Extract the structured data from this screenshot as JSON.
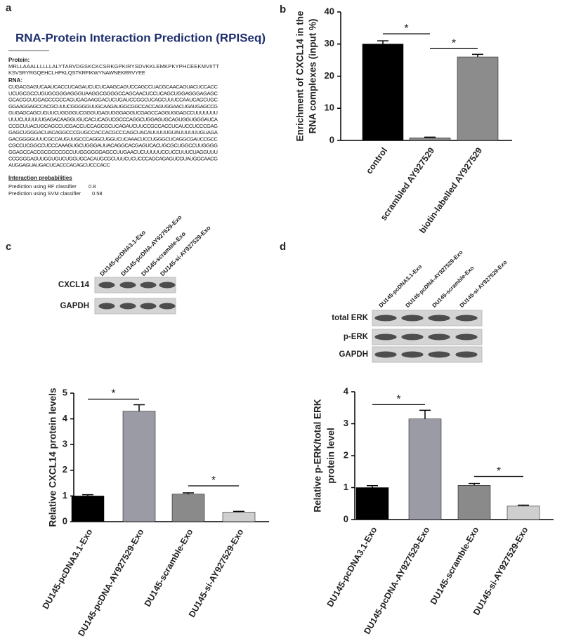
{
  "panels": [
    "a",
    "b",
    "c",
    "d"
  ],
  "rpiseq": {
    "title": "RNA-Protein Interaction Prediction (RPISeq)",
    "protein_label": "Protein:",
    "protein": [
      "MRLLAAALLLLLLALYTARVDGSKCKCSRKGPKIRYSDVKKLEMKPKYPHCEEKMVIITT",
      "KSVSRYRGQEHCLHPKLQSTKRFIKWYNAWNEKRRVYEE"
    ],
    "rna_label": "RNA:",
    "rna": [
      "CUGACGAGUCAAUCACCUCAGAUCUCUCAAGCAGUCCAGCCUACGCAACAGUACUCCACC",
      "UCUGCGCCUGUGCGGGAGGGUAAGGCGGGGCCAGCAACUCCUCAGCUGGAGGGAGAGC",
      "GCACGGUGGAGCCGCCAGUGAGAAGGACUCUGAUCCGGCUCAGCUUUCCAAUCAGCUGC",
      "GGAAGGAGCCACGCUUUCGGGGGUUGCAAGAUGGCGGCCACCAGUGGAACUGAUGAGCCG",
      "GUGAGCAGCUGUUCUGGGGUCGGGUGAGUGGGAGGUCGAGCCAGGUGGAGCCUUUUUUU",
      "UUUCUUUUUUGAGACAAGGUGUCACUCAGUCGCCCAGGCUGGAGUGCAGUGGUGGGAUCA",
      "CCGCUUACUGCAGCCUCGACCUCCAGCGCUCAGAUCUUCCGCCACCUCAUCCUCCCGAG",
      "GAGCUGGGACUACAGGCCCGUGCCACCACGCCCAGCUACAUUUUUGUAUUUUUUGUAGA",
      "GACGGGGUUUCGCCAUGUUGCCCAGGCUGGUCUCAAACUCCUGGGCUCAGGCGAUCCGCC",
      "CGCCUCGGCCUCCCAAAGUGCUGGGAUUACAGGCACGAGUCACUGCGCUGGCCUUGGGG",
      "GGAGCCACCGCGCCCGCCUUGGGGGGAGCCUUGAACUCUUUUUCCUCCUUUCUAGGUUU",
      "CCGGGGAGUUGGUGUCUGGUGCACAUGCGCUUUCUCUCCCAGCAGAGUCGUAUGGCAACG",
      "AUGGAGUAUGACUCACCCACAGCUCCCACC"
    ],
    "interaction_label": "Interaction probabilities",
    "predictions": [
      {
        "label": "Prediction using RF classifier",
        "value": "0.8"
      },
      {
        "label": "Prediction using SVM classifier",
        "value": "0.58"
      }
    ]
  },
  "blots": [
    {
      "lanes": [
        "DU145-pcDNA3.1-Exo",
        "DU145-pcDNA-AY927529-Exo",
        "DU145-scramble-Exo",
        "DU145-si-AY927529-Exo"
      ],
      "rows": [
        "CXCL14",
        "GAPDH"
      ]
    },
    {
      "lanes": [
        "DU145-pcDNA3.1-Exo",
        "DU145-pcDNA-AY927529-Exo",
        "DU145-scramble-Exo",
        "DU145-si-AY927529-Exo"
      ],
      "rows": [
        "total ERK",
        "p-ERK",
        "GAPDH"
      ]
    }
  ],
  "chart_data": [
    {
      "type": "bar",
      "ylabel": [
        "Enrichment of  CXCL14 in the",
        "RNA complexes (input %)"
      ],
      "categories": [
        "control",
        "scrambled  AY927529",
        "biotin-labelled AY927529"
      ],
      "values": [
        30,
        0.8,
        26
      ],
      "errors": [
        1,
        0.2,
        0.8
      ],
      "colors": [
        "#000000",
        "#8c8c8c",
        "#8c8c8c"
      ],
      "ylim": [
        0,
        40
      ],
      "yticks": [
        0,
        10,
        20,
        30,
        40
      ],
      "significance": [
        {
          "label": "*",
          "between": [
            "control",
            "scrambled  AY927529"
          ]
        },
        {
          "label": "*",
          "between": [
            "scrambled  AY927529",
            "biotin-labelled AY927529"
          ]
        }
      ]
    },
    {
      "type": "bar",
      "ylabel": [
        "Relative  CXCL14 protein  levels"
      ],
      "categories": [
        "DU145-pcDNA3.1-Exo",
        "DU145-pcDNA-AY927529-Exo",
        "DU145-scramble-Exo",
        "DU145-si-AY927529-Exo"
      ],
      "values": [
        1.0,
        4.3,
        1.07,
        0.37
      ],
      "errors": [
        0.05,
        0.25,
        0.05,
        0.03
      ],
      "colors": [
        "#000000",
        "#9a9ba4",
        "#8a8a8a",
        "#cfcfcf"
      ],
      "ylim": [
        0,
        5
      ],
      "yticks": [
        0,
        1,
        2,
        3,
        4,
        5
      ],
      "significance": [
        {
          "label": "*",
          "between": [
            "DU145-pcDNA3.1-Exo",
            "DU145-pcDNA-AY927529-Exo"
          ]
        },
        {
          "label": "*",
          "between": [
            "DU145-scramble-Exo",
            "DU145-si-AY927529-Exo"
          ]
        }
      ]
    },
    {
      "type": "bar",
      "ylabel": [
        "Relative  p-ERK/total ERK",
        "protein  level"
      ],
      "categories": [
        "DU145-pcDNA3.1-Exo",
        "DU145-pcDNA-AY927529-Exo",
        "DU145-scramble-Exo",
        "DU145-si-AY927529-Exo"
      ],
      "values": [
        1.0,
        3.15,
        1.07,
        0.42
      ],
      "errors": [
        0.06,
        0.27,
        0.06,
        0.03
      ],
      "colors": [
        "#000000",
        "#9a9ba4",
        "#8a8a8a",
        "#cfcfcf"
      ],
      "ylim": [
        0,
        4
      ],
      "yticks": [
        0,
        1,
        2,
        3,
        4
      ],
      "significance": [
        {
          "label": "*",
          "between": [
            "DU145-pcDNA3.1-Exo",
            "DU145-pcDNA-AY927529-Exo"
          ]
        },
        {
          "label": "*",
          "between": [
            "DU145-scramble-Exo",
            "DU145-si-AY927529-Exo"
          ]
        }
      ]
    }
  ]
}
